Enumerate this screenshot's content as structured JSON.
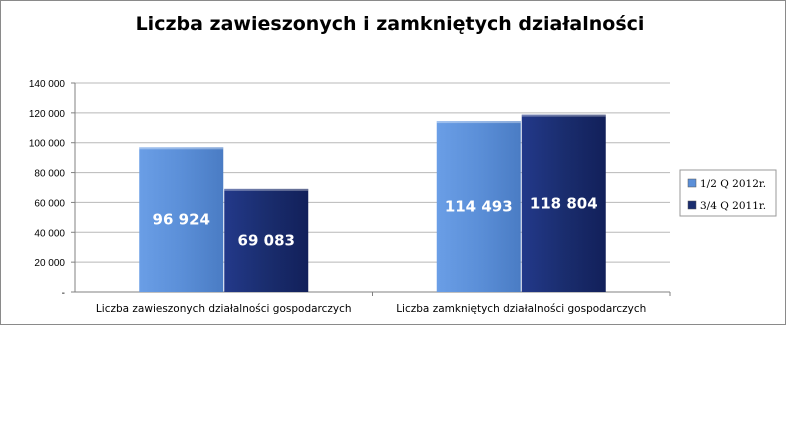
{
  "chart_data": {
    "type": "bar",
    "title": "Liczba zawieszonych i zamkniętych działalności",
    "xlabel": "",
    "ylabel": "",
    "ylim": [
      0,
      140000
    ],
    "yticks": [
      0,
      20000,
      40000,
      60000,
      80000,
      100000,
      120000,
      140000
    ],
    "ytick_labels": [
      "-",
      "20 000",
      "40 000",
      "60 000",
      "80 000",
      "100 000",
      "120 000",
      "140 000"
    ],
    "categories": [
      "Liczba zawieszonych działalności gospodarczych",
      "Liczba zamkniętych działalności gospodarczych"
    ],
    "series": [
      {
        "name": "1/2 Q 2012r.",
        "values": [
          96924,
          114493
        ],
        "labels": [
          "96 924",
          "114 493"
        ],
        "color": "#5b8fd8"
      },
      {
        "name": "3/4 Q 2011r.",
        "values": [
          69083,
          118804
        ],
        "labels": [
          "69 083",
          "118 804"
        ],
        "color": "#1a2d6e"
      }
    ],
    "grid": true,
    "legend_position": "right"
  }
}
